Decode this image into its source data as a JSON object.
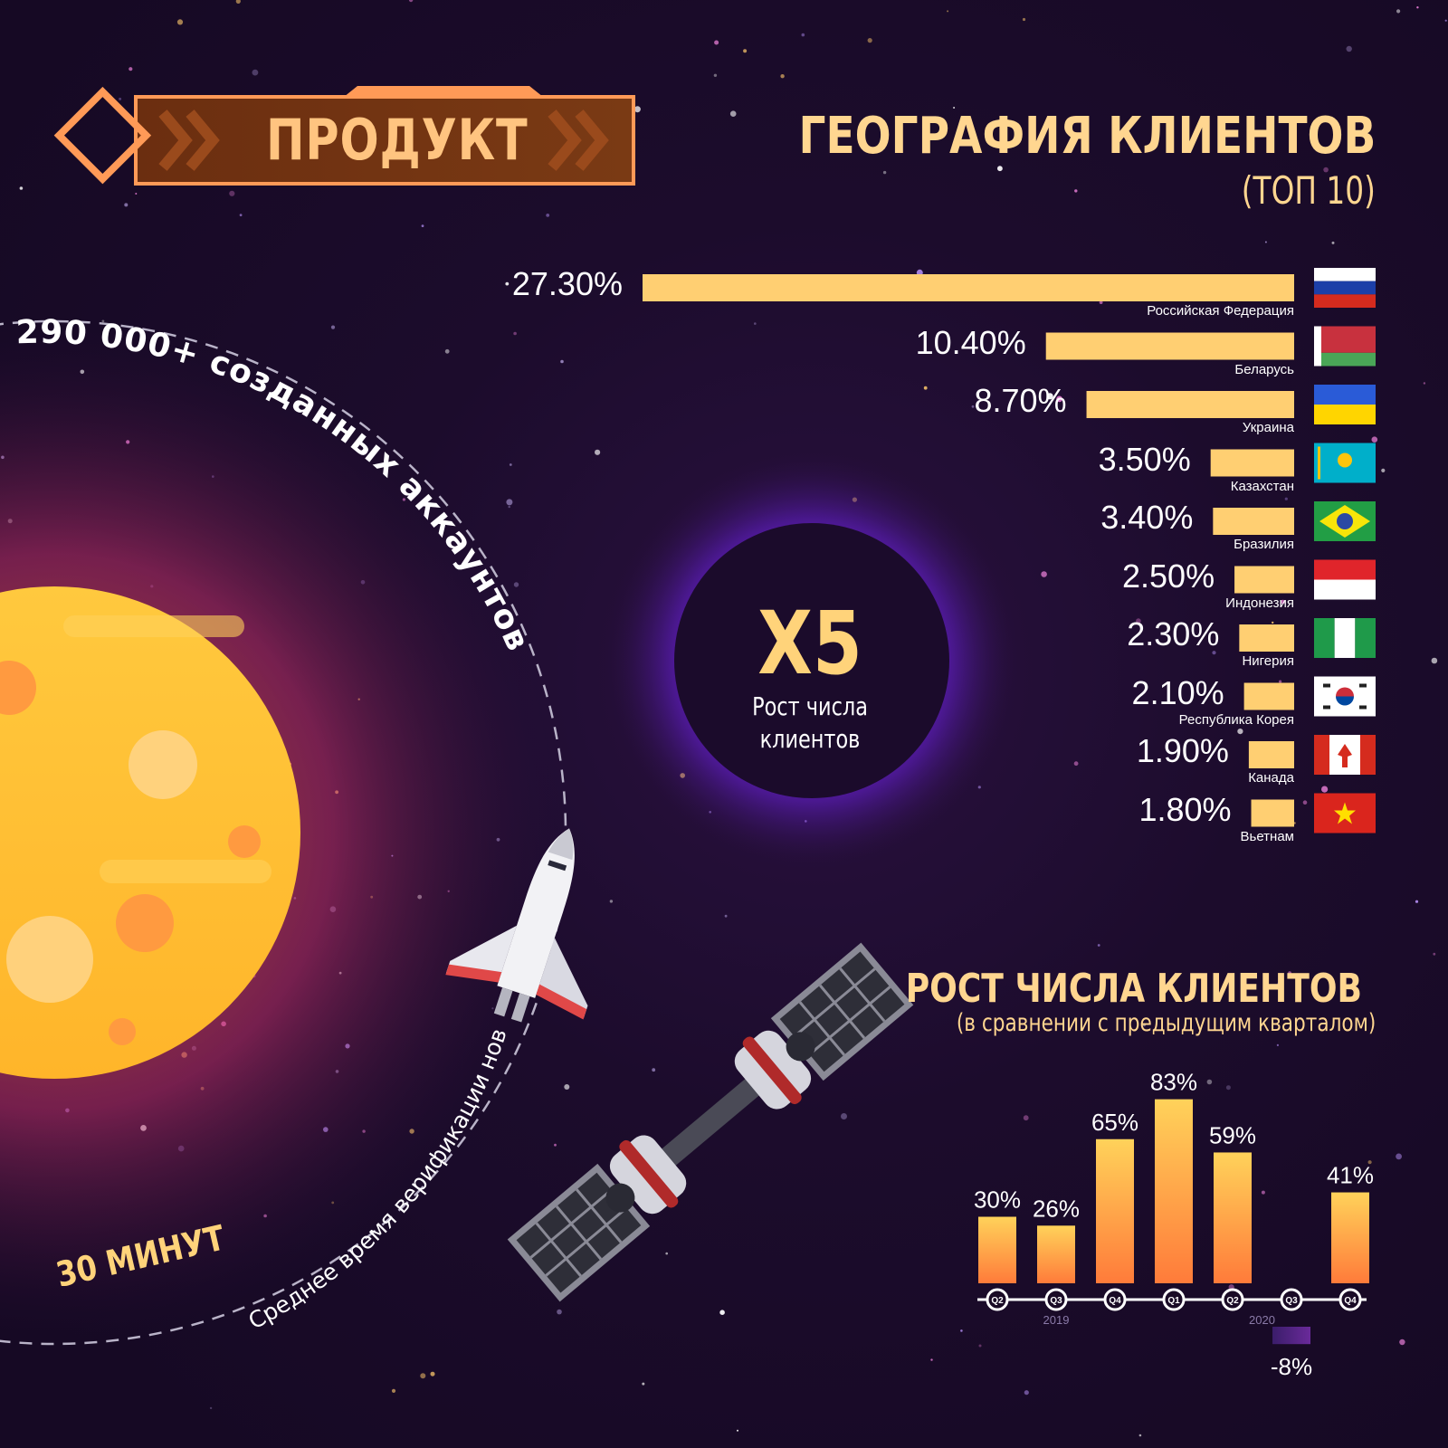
{
  "header": {
    "title": "ПРОДУКТ"
  },
  "geography": {
    "title": "ГЕОГРАФИЯ КЛИЕНТОВ",
    "subtitle": "(ТОП 10)"
  },
  "center_stat": {
    "value": "X5",
    "caption": "Рост числа клиентов"
  },
  "accounts": {
    "text": "290 000+ созданных аккаунтов"
  },
  "verification": {
    "value": "30 МИНУТ",
    "caption": "Среднее время верификации нового аккаунта"
  },
  "growth": {
    "title": "РОСТ ЧИСЛА КЛИЕНТОВ",
    "subtitle": "(в сравнении с предыдущим кварталом)"
  },
  "colors": {
    "accent": "#ffc35f",
    "background": "#1a0b26",
    "planet": "#ffc23a",
    "negative_bar": "#5a2a8c"
  },
  "chart_data": [
    {
      "type": "bar",
      "orientation": "horizontal",
      "title": "ГЕОГРАФИЯ КЛИЕНТОВ",
      "subtitle": "(ТОП 10)",
      "categories": [
        "Российская Федерация",
        "Беларусь",
        "Украина",
        "Казахстан",
        "Бразилия",
        "Индонезия",
        "Нигерия",
        "Республика Корея",
        "Канада",
        "Вьетнам"
      ],
      "values": [
        27.3,
        10.4,
        8.7,
        3.5,
        3.4,
        2.5,
        2.3,
        2.1,
        1.9,
        1.8
      ],
      "labels": [
        "27.30%",
        "10.40%",
        "8.70%",
        "3.50%",
        "3.40%",
        "2.50%",
        "2.30%",
        "2.10%",
        "1.90%",
        "1.80%"
      ],
      "flags": [
        "ru",
        "by",
        "ua",
        "kz",
        "br",
        "id",
        "ng",
        "kr",
        "ca",
        "vn"
      ],
      "xlim": [
        0,
        27.3
      ]
    },
    {
      "type": "bar",
      "title": "РОСТ ЧИСЛА КЛИЕНТОВ",
      "subtitle": "(в сравнении с предыдущим кварталом)",
      "categories": [
        "Q2",
        "Q3",
        "Q4",
        "Q1",
        "Q2",
        "Q3",
        "Q4"
      ],
      "years": [
        {
          "label": "2019",
          "quarters": [
            "Q2",
            "Q3",
            "Q4"
          ]
        },
        {
          "label": "2020",
          "quarters": [
            "Q1",
            "Q2",
            "Q3",
            "Q4"
          ]
        }
      ],
      "values": [
        30,
        26,
        65,
        83,
        59,
        -8,
        41
      ],
      "labels": [
        "30%",
        "26%",
        "65%",
        "83%",
        "59%",
        "-8%",
        "41%"
      ],
      "ylim": [
        -8,
        83
      ]
    }
  ]
}
